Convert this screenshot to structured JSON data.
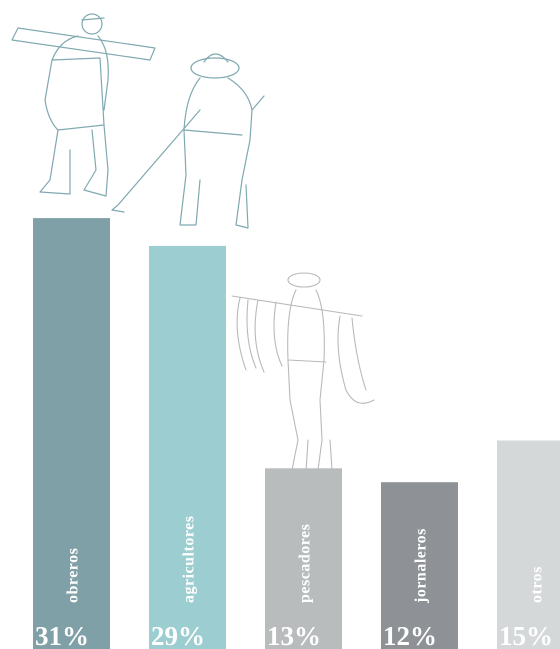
{
  "chart_data": {
    "type": "bar",
    "categories": [
      "obreros",
      "agricultores",
      "pescadores",
      "jornaleros",
      "otros"
    ],
    "values": [
      31,
      29,
      13,
      12,
      15
    ],
    "value_labels": [
      "31%",
      "29%",
      "13%",
      "12%",
      "15%"
    ],
    "colors": [
      "#7fa0a6",
      "#9ccdd0",
      "#b9bcbd",
      "#8e9296",
      "#d5d8d8"
    ]
  }
}
